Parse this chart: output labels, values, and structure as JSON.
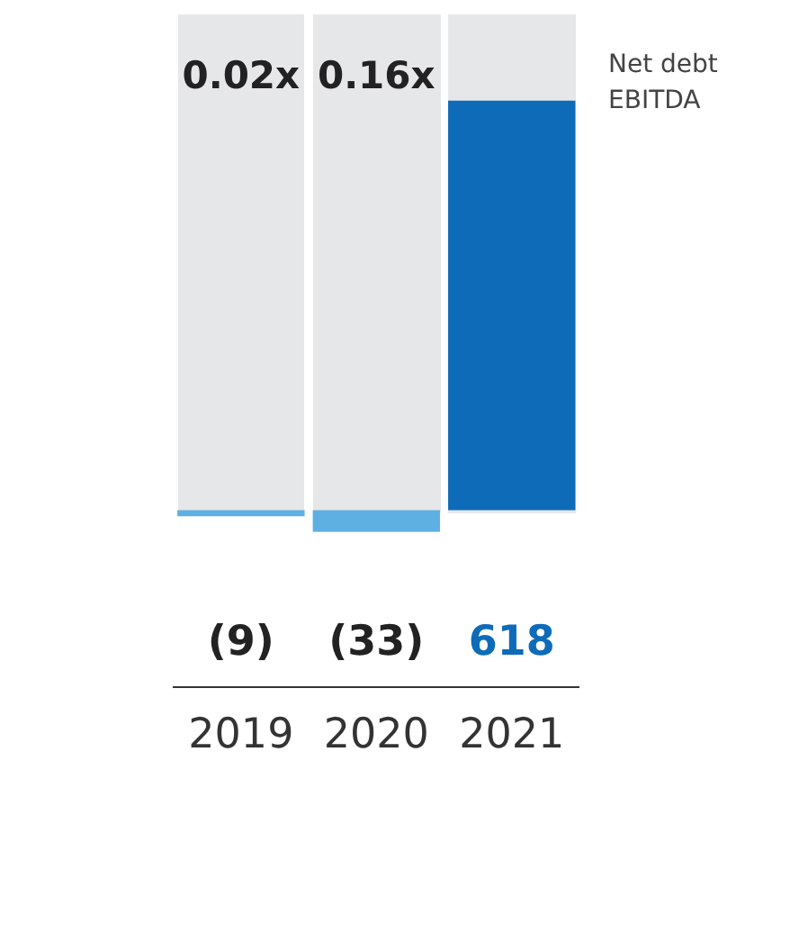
{
  "chart_data": {
    "type": "bar",
    "categories": [
      "2019",
      "2020",
      "2021"
    ],
    "values": [
      -9,
      -33,
      618
    ],
    "colors": [
      "#5fb0e2",
      "#5fb0e2",
      "#0e6bb8"
    ],
    "value_labels": [
      "(9)",
      "(33)",
      "618"
    ],
    "annotations": [
      "0.02x",
      "0.16x",
      "Net debt EBITDA"
    ],
    "grid": false,
    "legend": false
  }
}
